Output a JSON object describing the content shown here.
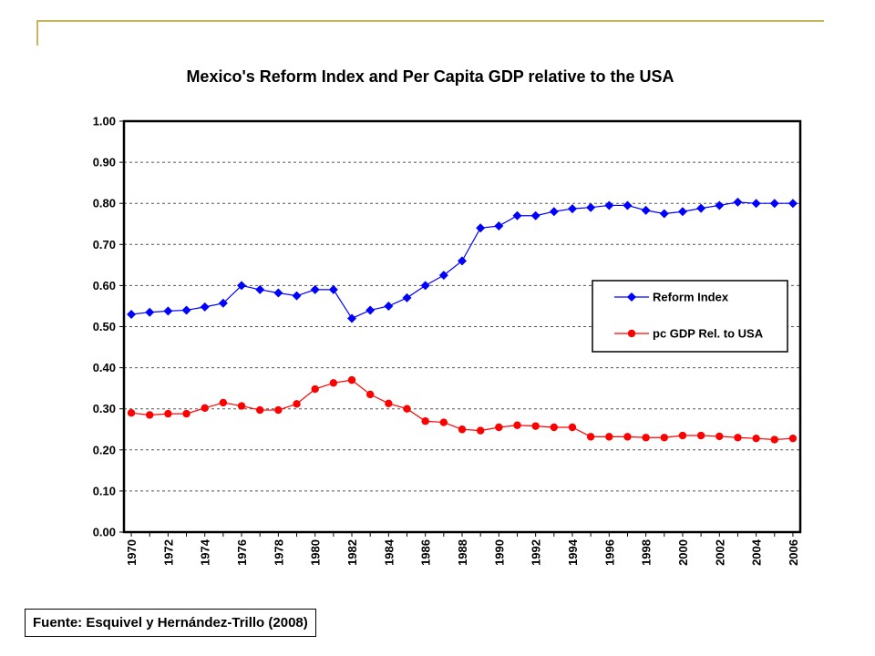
{
  "chart_data": {
    "type": "line",
    "title": "Mexico's Reform Index and Per Capita GDP relative to the USA",
    "xlabel": "",
    "ylabel": "",
    "ylim": [
      0,
      1
    ],
    "yticks": [
      "0.00",
      "0.10",
      "0.20",
      "0.30",
      "0.40",
      "0.50",
      "0.60",
      "0.70",
      "0.80",
      "0.90",
      "1.00"
    ],
    "xticks": [
      "1970",
      "1972",
      "1974",
      "1976",
      "1978",
      "1980",
      "1982",
      "1984",
      "1986",
      "1988",
      "1990",
      "1992",
      "1994",
      "1996",
      "1998",
      "2000",
      "2002",
      "2004",
      "2006"
    ],
    "grid": "horizontal dashed",
    "legend_position": "right",
    "x": [
      1970,
      1971,
      1972,
      1973,
      1974,
      1975,
      1976,
      1977,
      1978,
      1979,
      1980,
      1981,
      1982,
      1983,
      1984,
      1985,
      1986,
      1987,
      1988,
      1989,
      1990,
      1991,
      1992,
      1993,
      1994,
      1995,
      1996,
      1997,
      1998,
      1999,
      2000,
      2001,
      2002,
      2003,
      2004,
      2005,
      2006
    ],
    "series": [
      {
        "name": "Reform Index",
        "color": "#0000ff",
        "marker": "diamond",
        "values": [
          0.53,
          0.535,
          0.538,
          0.54,
          0.548,
          0.557,
          0.6,
          0.59,
          0.582,
          0.575,
          0.59,
          0.59,
          0.52,
          0.54,
          0.55,
          0.57,
          0.6,
          0.625,
          0.66,
          0.74,
          0.745,
          0.77,
          0.77,
          0.78,
          0.787,
          0.79,
          0.795,
          0.795,
          0.783,
          0.775,
          0.78,
          0.788,
          0.795,
          0.803,
          0.8,
          0.8,
          0.8
        ]
      },
      {
        "name": "pc GDP Rel. to USA",
        "color": "#ff0000",
        "marker": "circle",
        "values": [
          0.29,
          0.285,
          0.288,
          0.288,
          0.302,
          0.315,
          0.307,
          0.297,
          0.297,
          0.312,
          0.348,
          0.363,
          0.37,
          0.335,
          0.313,
          0.3,
          0.27,
          0.267,
          0.25,
          0.247,
          0.255,
          0.26,
          0.258,
          0.255,
          0.255,
          0.232,
          0.232,
          0.232,
          0.23,
          0.23,
          0.235,
          0.235,
          0.233,
          0.23,
          0.228,
          0.225,
          0.228
        ]
      }
    ]
  },
  "source": "Fuente: Esquivel y Hernández-Trillo (2008)",
  "colors": {
    "accent_rule": "#c8b45a",
    "grid": "#555555"
  }
}
